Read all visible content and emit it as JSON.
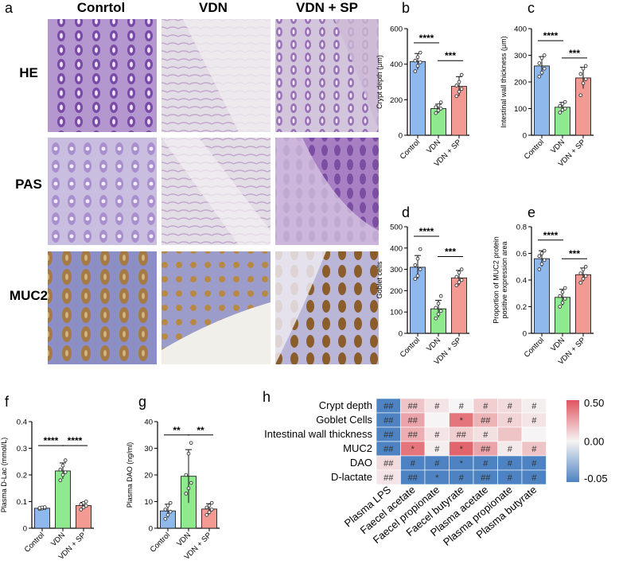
{
  "panel_letters": [
    "a",
    "b",
    "c",
    "d",
    "e",
    "f",
    "g",
    "h"
  ],
  "micrograph": {
    "column_titles": [
      "Conrtol",
      "VDN",
      "VDN + SP"
    ],
    "row_labels": [
      "HE",
      "PAS",
      "MUC2"
    ]
  },
  "colors": {
    "control": "#8fb8ec",
    "vdn": "#8fe98f",
    "vdnsp": "#f39a93"
  },
  "chart_data": [
    {
      "id": "b",
      "type": "bar",
      "ylabel": "Crypt depth (μm)",
      "ylim": [
        0,
        600
      ],
      "yticks": [
        0,
        200,
        400,
        600
      ],
      "categories": [
        "Control",
        "VDN",
        "VDN + SP"
      ],
      "values": [
        415,
        150,
        275
      ],
      "errors": [
        45,
        25,
        55
      ],
      "points": [
        [
          360,
          390,
          410,
          420,
          440,
          465
        ],
        [
          125,
          140,
          150,
          158,
          168,
          185
        ],
        [
          220,
          245,
          260,
          280,
          300,
          340
        ]
      ],
      "sig": [
        {
          "from": 0,
          "to": 1,
          "label": "****",
          "level": 520
        },
        {
          "from": 1,
          "to": 2,
          "label": "***",
          "level": 420
        }
      ]
    },
    {
      "id": "c",
      "type": "bar",
      "ylabel": "Intestinal wall thickness (μm)",
      "ylim": [
        0,
        400
      ],
      "yticks": [
        0,
        100,
        200,
        300,
        400
      ],
      "categories": [
        "Control",
        "VDN",
        "VDN + SP"
      ],
      "values": [
        260,
        105,
        215
      ],
      "errors": [
        35,
        18,
        40
      ],
      "points": [
        [
          220,
          235,
          250,
          270,
          290,
          300
        ],
        [
          85,
          95,
          100,
          110,
          118,
          125
        ],
        [
          150,
          195,
          210,
          230,
          250,
          260
        ]
      ],
      "sig": [
        {
          "from": 0,
          "to": 1,
          "label": "****",
          "level": 355
        },
        {
          "from": 1,
          "to": 2,
          "label": "***",
          "level": 290
        }
      ]
    },
    {
      "id": "d",
      "type": "bar",
      "ylabel": "Goblet cells",
      "ylim": [
        0,
        500
      ],
      "yticks": [
        0,
        100,
        200,
        300,
        400,
        500
      ],
      "categories": [
        "Control",
        "VDN",
        "VDN + SP"
      ],
      "values": [
        310,
        115,
        260
      ],
      "errors": [
        55,
        40,
        35
      ],
      "points": [
        [
          255,
          270,
          300,
          320,
          350,
          395
        ],
        [
          70,
          90,
          105,
          120,
          140,
          175
        ],
        [
          225,
          240,
          250,
          265,
          285,
          300
        ]
      ],
      "sig": [
        {
          "from": 0,
          "to": 1,
          "label": "****",
          "level": 455
        },
        {
          "from": 1,
          "to": 2,
          "label": "***",
          "level": 360
        }
      ]
    },
    {
      "id": "e",
      "type": "bar",
      "ylabel": "Proportion of MUC2 protein positive expression area",
      "ylim": [
        0,
        0.8
      ],
      "yticks": [
        0,
        0.2,
        0.4,
        0.6,
        0.8
      ],
      "categories": [
        "Control",
        "VDN",
        "VDN + SP"
      ],
      "values": [
        0.56,
        0.27,
        0.44
      ],
      "errors": [
        0.06,
        0.06,
        0.05
      ],
      "points": [
        [
          0.48,
          0.52,
          0.55,
          0.58,
          0.6,
          0.62
        ],
        [
          0.2,
          0.23,
          0.26,
          0.28,
          0.31,
          0.34
        ],
        [
          0.38,
          0.41,
          0.43,
          0.45,
          0.48,
          0.5
        ]
      ],
      "sig": [
        {
          "from": 0,
          "to": 1,
          "label": "****",
          "level": 0.7
        },
        {
          "from": 1,
          "to": 2,
          "label": "***",
          "level": 0.56
        }
      ]
    },
    {
      "id": "f",
      "type": "bar",
      "ylabel": "Plasma D-Lac (mmol/L)",
      "ylim": [
        0,
        0.4
      ],
      "yticks": [
        0,
        0.1,
        0.2,
        0.3,
        0.4
      ],
      "categories": [
        "Control",
        "VDN",
        "VDN + SP"
      ],
      "values": [
        0.075,
        0.215,
        0.085
      ],
      "errors": [
        0.003,
        0.03,
        0.012
      ],
      "points": [
        [
          0.072,
          0.074,
          0.075,
          0.076,
          0.078,
          0.079
        ],
        [
          0.18,
          0.2,
          0.21,
          0.22,
          0.235,
          0.255
        ],
        [
          0.07,
          0.078,
          0.084,
          0.09,
          0.095,
          0.1
        ]
      ],
      "sig": [
        {
          "from": 0,
          "to": 1,
          "label": "****",
          "level": 0.31
        },
        {
          "from": 1,
          "to": 2,
          "label": "****",
          "level": 0.31
        }
      ]
    },
    {
      "id": "g",
      "type": "bar",
      "ylabel": "Plasma DAO (ng/ml)",
      "ylim": [
        0,
        40
      ],
      "yticks": [
        0,
        10,
        20,
        30,
        40
      ],
      "categories": [
        "Control",
        "VDN",
        "VDN + SP"
      ],
      "values": [
        6.5,
        19.5,
        7.2
      ],
      "errors": [
        2.5,
        10,
        2
      ],
      "points": [
        [
          3.5,
          5,
          6.2,
          7,
          8.5,
          9.5
        ],
        [
          13,
          15,
          17,
          20,
          28,
          32
        ],
        [
          5,
          6,
          7,
          7.8,
          8.5,
          9.5
        ]
      ],
      "sig": [
        {
          "from": 0,
          "to": 1,
          "label": "**",
          "level": 35
        },
        {
          "from": 1,
          "to": 2,
          "label": "**",
          "level": 35
        }
      ]
    },
    {
      "id": "h",
      "type": "heatmap",
      "rows": [
        "Crypt depth",
        "Goblet Cells",
        "Intestinal wall thickness",
        "MUC2",
        "DAO",
        "D-lactate"
      ],
      "columns": [
        "Plasma LPS",
        "Faecel acetate",
        "Faecel propionate",
        "Faecel butyrate",
        "Plasma acetate",
        "Plasma propionate",
        "Plasma butyrate"
      ],
      "values": [
        [
          -0.05,
          0.15,
          0.05,
          0.0,
          0.12,
          0.08,
          0.02
        ],
        [
          -0.05,
          0.25,
          0.0,
          0.4,
          0.2,
          0.1,
          0.05
        ],
        [
          -0.05,
          0.22,
          0.05,
          0.12,
          0.06,
          0.15,
          0.0
        ],
        [
          -0.05,
          0.4,
          0.02,
          0.45,
          0.25,
          0.03,
          0.15
        ],
        [
          0.08,
          -0.05,
          -0.05,
          -0.05,
          -0.05,
          -0.05,
          -0.05
        ],
        [
          0.05,
          -0.05,
          -0.05,
          -0.05,
          -0.05,
          -0.05,
          -0.05
        ]
      ],
      "labels": [
        [
          "##",
          "##",
          "#",
          "#",
          "#",
          "#",
          "#"
        ],
        [
          "##",
          "##",
          "",
          "*",
          "##",
          "#",
          "#"
        ],
        [
          "##",
          "##",
          "#",
          "##",
          "#",
          "",
          ""
        ],
        [
          "##",
          "*",
          "#",
          "*",
          "##",
          "#",
          "#"
        ],
        [
          "##",
          "#",
          "#",
          "*",
          "#",
          "#",
          "#"
        ],
        [
          "##",
          "##",
          "*",
          "#",
          "##",
          "#",
          "#"
        ]
      ],
      "colorbar": {
        "ticks": [
          "0.50",
          "0.00",
          "-0.05"
        ]
      }
    }
  ]
}
